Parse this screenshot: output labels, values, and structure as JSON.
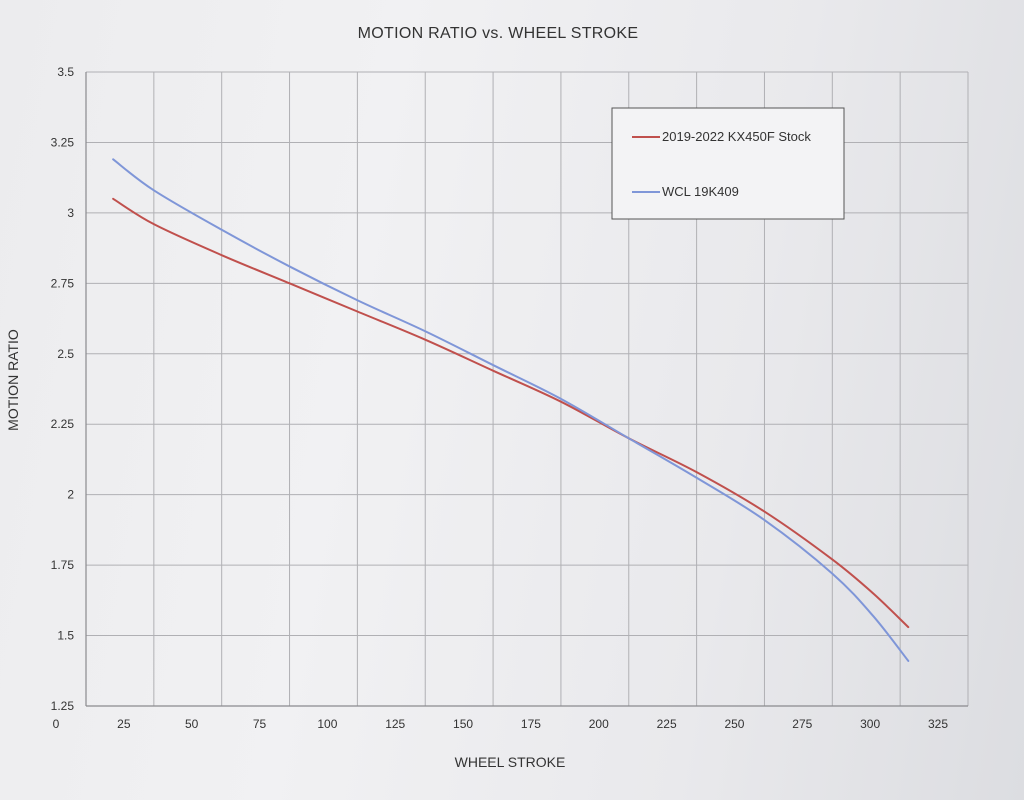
{
  "chart_data": {
    "type": "line",
    "title": "MOTION RATIO vs. WHEEL STROKE",
    "xlabel": "WHEEL STROKE",
    "ylabel": "MOTION RATIO",
    "xlim": [
      0,
      325
    ],
    "ylim": [
      1.25,
      3.5
    ],
    "xticks": [
      0,
      25,
      50,
      75,
      100,
      125,
      150,
      175,
      200,
      225,
      250,
      275,
      300,
      325
    ],
    "yticks": [
      1.25,
      1.5,
      1.75,
      2,
      2.25,
      2.5,
      2.75,
      3,
      3.25,
      3.5
    ],
    "grid": true,
    "legend_position": "top-right",
    "series": [
      {
        "name": "2019-2022 KX450F Stock",
        "color": "#c0504d",
        "x": [
          10,
          25,
          50,
          75,
          100,
          125,
          150,
          175,
          200,
          225,
          250,
          275,
          290,
          303
        ],
        "y": [
          3.05,
          2.96,
          2.85,
          2.75,
          2.65,
          2.55,
          2.44,
          2.33,
          2.2,
          2.08,
          1.94,
          1.77,
          1.65,
          1.53
        ]
      },
      {
        "name": "WCL 19K409",
        "color": "#7f96d8",
        "x": [
          10,
          25,
          50,
          75,
          100,
          125,
          150,
          175,
          200,
          225,
          250,
          275,
          290,
          303
        ],
        "y": [
          3.19,
          3.08,
          2.94,
          2.81,
          2.69,
          2.58,
          2.46,
          2.34,
          2.2,
          2.06,
          1.91,
          1.72,
          1.57,
          1.41
        ]
      }
    ]
  }
}
